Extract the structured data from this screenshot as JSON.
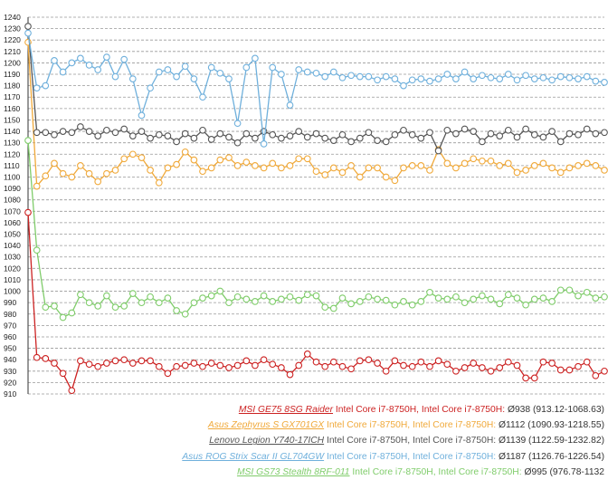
{
  "chart_data": {
    "type": "line",
    "ylim": [
      910,
      1240
    ],
    "yticks": [
      910,
      920,
      930,
      940,
      950,
      960,
      970,
      980,
      990,
      1000,
      1010,
      1020,
      1030,
      1040,
      1050,
      1060,
      1070,
      1080,
      1090,
      1100,
      1110,
      1120,
      1130,
      1140,
      1150,
      1160,
      1170,
      1180,
      1190,
      1200,
      1210,
      1220,
      1230,
      1240
    ],
    "grid": true,
    "legend_placement": "bottom-right",
    "series": [
      {
        "name": "MSI GE75 8SG Raider",
        "cpu_text": "Intel Core i7-8750H, Intel Core i7-8750H:",
        "stats_text": "Ø938 (913.12-1068.63)",
        "color": "#cc2222",
        "values": [
          1069,
          942,
          941,
          937,
          928,
          913,
          939,
          936,
          934,
          937,
          939,
          940,
          937,
          939,
          939,
          934,
          928,
          934,
          935,
          937,
          934,
          937,
          935,
          933,
          935,
          939,
          935,
          940,
          936,
          933,
          927,
          935,
          945,
          938,
          934,
          938,
          934,
          932,
          939,
          940,
          937,
          930,
          939,
          935,
          934,
          938,
          934,
          939,
          936,
          930,
          933,
          937,
          933,
          930,
          933,
          938,
          935,
          924,
          924,
          938,
          937,
          931,
          931,
          934,
          938,
          926,
          930
        ]
      },
      {
        "name": "Asus Zephyrus S GX701GX",
        "cpu_text": "Intel Core i7-8750H, Intel Core i7-8750H:",
        "stats_text": "Ø1112 (1090.93-1218.55)",
        "color": "#f0a93a",
        "values": [
          1218,
          1092,
          1101,
          1112,
          1103,
          1100,
          1110,
          1103,
          1096,
          1103,
          1106,
          1116,
          1120,
          1117,
          1106,
          1095,
          1108,
          1111,
          1122,
          1115,
          1105,
          1108,
          1115,
          1117,
          1110,
          1113,
          1110,
          1108,
          1112,
          1108,
          1110,
          1116,
          1116,
          1105,
          1102,
          1108,
          1104,
          1110,
          1100,
          1108,
          1108,
          1100,
          1097,
          1108,
          1110,
          1110,
          1106,
          1124,
          1112,
          1108,
          1112,
          1116,
          1114,
          1114,
          1110,
          1112,
          1104,
          1106,
          1110,
          1112,
          1108,
          1104,
          1108,
          1110,
          1112,
          1110,
          1106
        ]
      },
      {
        "name": "Lenovo Legion Y740-17ICH",
        "cpu_text": "Intel Core i7-8750H, Intel Core i7-8750H:",
        "stats_text": "Ø1139 (1122.59-1232.82)",
        "color": "#555555",
        "values": [
          1232,
          1139,
          1139,
          1137,
          1140,
          1139,
          1144,
          1140,
          1136,
          1141,
          1139,
          1142,
          1136,
          1140,
          1134,
          1137,
          1136,
          1131,
          1138,
          1134,
          1141,
          1133,
          1138,
          1135,
          1130,
          1138,
          1134,
          1140,
          1137,
          1134,
          1136,
          1140,
          1135,
          1138,
          1134,
          1132,
          1137,
          1131,
          1134,
          1139,
          1132,
          1131,
          1137,
          1141,
          1137,
          1134,
          1139,
          1123,
          1141,
          1138,
          1142,
          1140,
          1131,
          1138,
          1136,
          1141,
          1135,
          1142,
          1137,
          1135,
          1140,
          1131,
          1138,
          1137,
          1142,
          1138,
          1139
        ]
      },
      {
        "name": "Asus ROG Strix Scar II GL704GW",
        "cpu_text": "Intel Core i7-8750H, Intel Core i7-8750H:",
        "stats_text": "Ø1187 (1126.76-1226.54)",
        "color": "#6fb0dc",
        "values": [
          1226,
          1178,
          1180,
          1202,
          1192,
          1200,
          1204,
          1198,
          1194,
          1205,
          1188,
          1203,
          1186,
          1154,
          1178,
          1192,
          1194,
          1188,
          1197,
          1186,
          1170,
          1196,
          1191,
          1186,
          1147,
          1196,
          1204,
          1129,
          1196,
          1190,
          1163,
          1194,
          1192,
          1191,
          1188,
          1192,
          1187,
          1189,
          1188,
          1188,
          1185,
          1188,
          1186,
          1180,
          1185,
          1186,
          1184,
          1186,
          1190,
          1186,
          1192,
          1186,
          1189,
          1187,
          1186,
          1190,
          1185,
          1189,
          1186,
          1187,
          1185,
          1188,
          1187,
          1186,
          1188,
          1184,
          1183
        ]
      },
      {
        "name": "MSI GS73 Stealth 8RF-011",
        "cpu_text": "Intel Core i7-8750H, Intel Core i7-8750H:",
        "stats_text": "Ø995 (976.78-1132",
        "color": "#7fcc6a",
        "values": [
          1132,
          1036,
          986,
          987,
          977,
          981,
          997,
          990,
          987,
          996,
          986,
          987,
          998,
          990,
          995,
          990,
          994,
          983,
          980,
          990,
          994,
          996,
          1000,
          990,
          995,
          993,
          991,
          996,
          991,
          993,
          995,
          992,
          997,
          996,
          986,
          985,
          994,
          989,
          991,
          995,
          993,
          992,
          988,
          991,
          988,
          991,
          999,
          994,
          993,
          995,
          990,
          993,
          996,
          993,
          989,
          997,
          994,
          988,
          993,
          994,
          991,
          1001,
          1001,
          996,
          999,
          994,
          995
        ]
      }
    ]
  }
}
